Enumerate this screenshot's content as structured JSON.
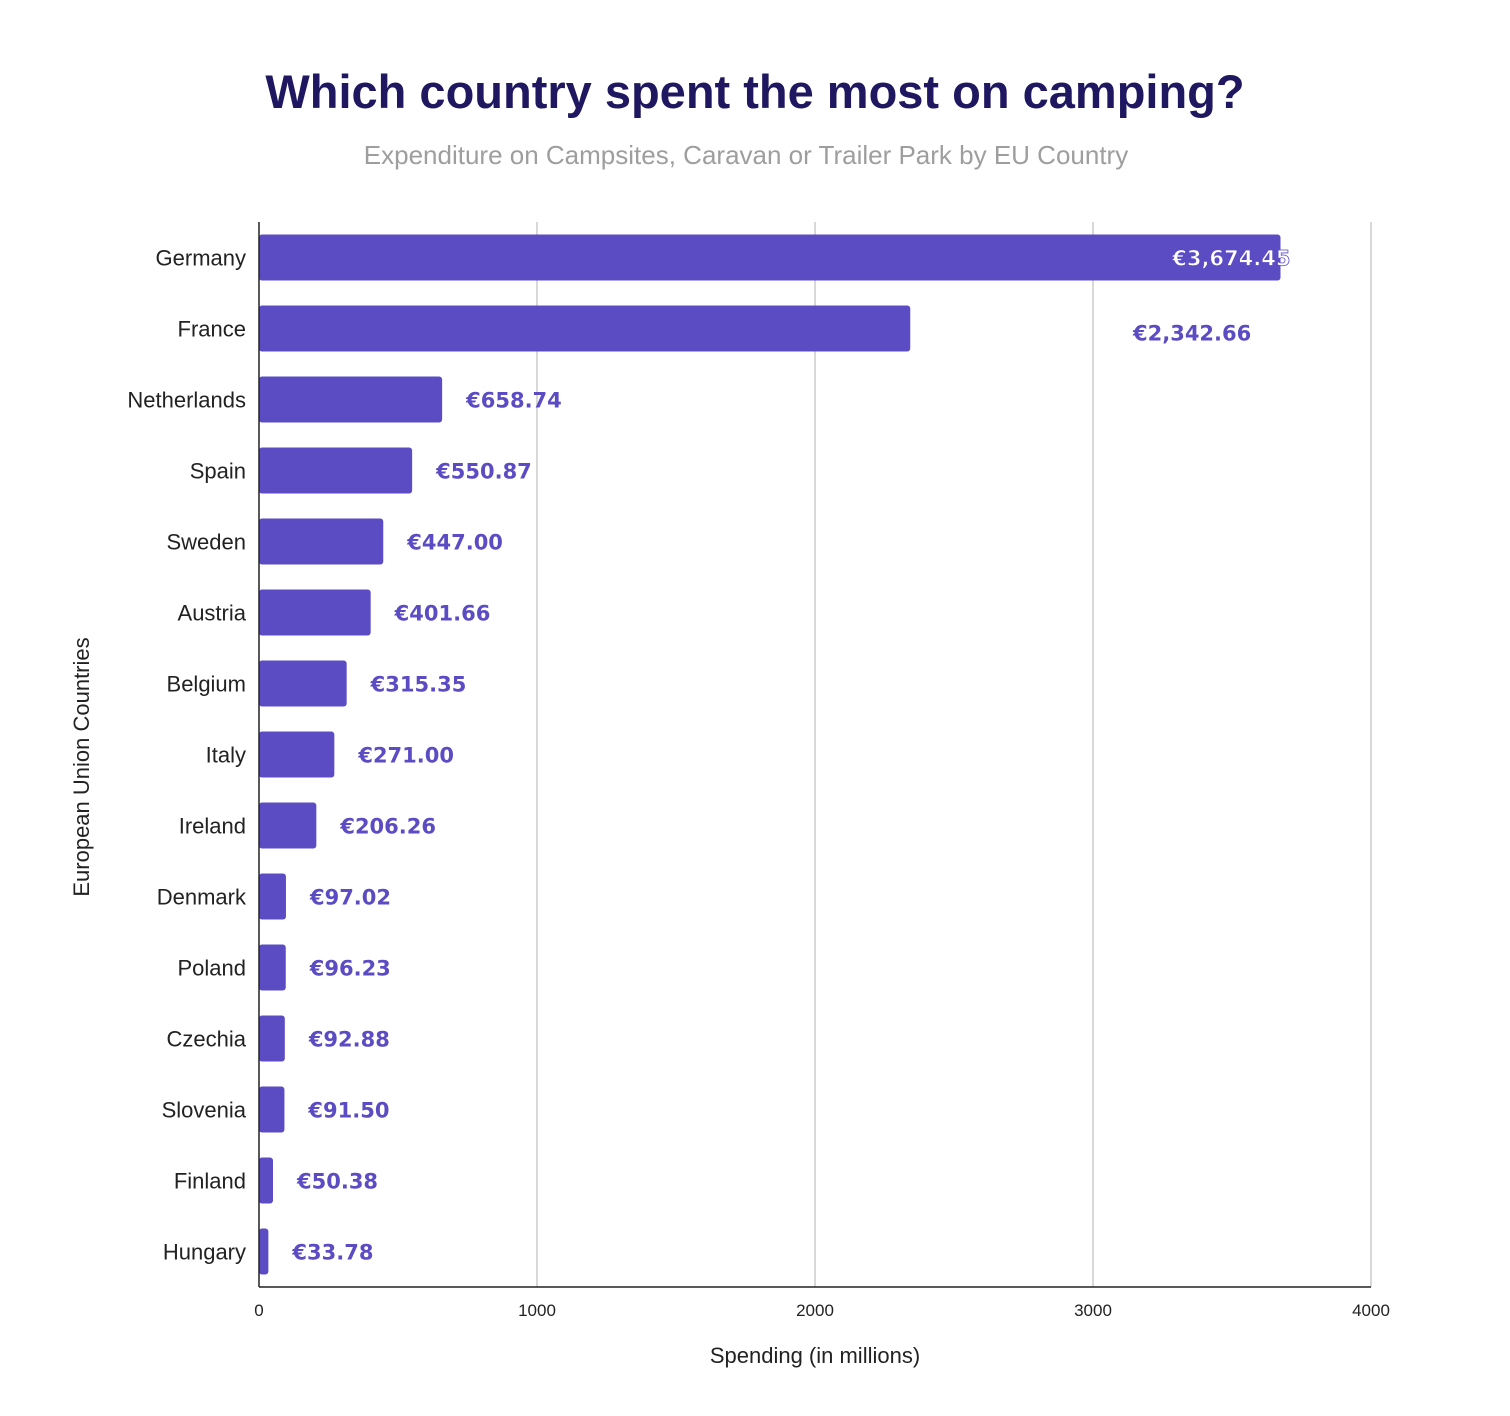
{
  "colors": {
    "bar": "#5b4cc4",
    "label": "#5b4cc4",
    "title": "#1f1760",
    "subtitle": "#9e9e9e",
    "grid": "#cccccc"
  },
  "chart_data": {
    "type": "bar",
    "orientation": "horizontal",
    "title": "Which country spent the most on camping?",
    "subtitle": "Expenditure on Campsites, Caravan or Trailer Park by EU Country",
    "xlabel": "Spending (in millions)",
    "ylabel": "European Union Countries",
    "xlim": [
      0,
      4000
    ],
    "xticks": [
      "0",
      "1000",
      "2000",
      "3000",
      "4000"
    ],
    "grid": true,
    "legend": "none",
    "categories": [
      "Germany",
      "France",
      "Netherlands",
      "Spain",
      "Sweden",
      "Austria",
      "Belgium",
      "Italy",
      "Ireland",
      "Denmark",
      "Poland",
      "Czechia",
      "Slovenia",
      "Finland",
      "Hungary"
    ],
    "values": [
      3674.45,
      2342.66,
      658.74,
      550.87,
      447.0,
      401.66,
      315.35,
      271.0,
      206.26,
      97.02,
      96.23,
      92.88,
      91.5,
      50.38,
      33.78
    ],
    "data_labels": [
      "€3,674.45",
      "€2,342.66",
      "€658.74",
      "€550.87",
      "€447.00",
      "€401.66",
      "€315.35",
      "€271.00",
      "€206.26",
      "€97.02",
      "€96.23",
      "€92.88",
      "€91.50",
      "€50.38",
      "€33.78"
    ]
  }
}
